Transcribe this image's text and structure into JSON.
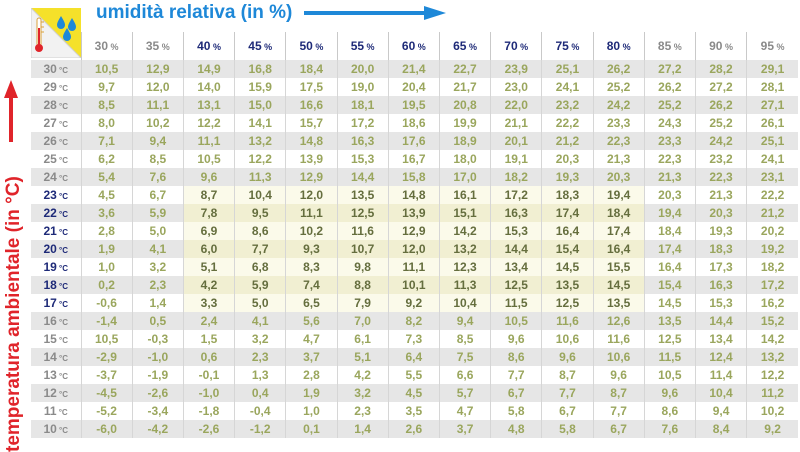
{
  "header": {
    "title": "umidità relativa (in %)"
  },
  "side": {
    "label": "temperatura ambientale (in °C)"
  },
  "icons": {
    "corner": "thermometer-water-drops-icon"
  },
  "colors": {
    "title": "#1e88d8",
    "side_label": "#e0242a",
    "dark_label": "#1e2a78",
    "value_green": "#9aa65d"
  },
  "units": {
    "humidity": "%",
    "temperature": "°C"
  },
  "humidity": [
    "30",
    "35",
    "40",
    "45",
    "50",
    "55",
    "60",
    "65",
    "70",
    "75",
    "80",
    "85",
    "90",
    "95"
  ],
  "rows": [
    {
      "t": "30",
      "v": [
        "10,5",
        "12,9",
        "14,9",
        "16,8",
        "18,4",
        "20,0",
        "21,4",
        "22,7",
        "23,9",
        "25,1",
        "26,2",
        "27,2",
        "28,2",
        "29,1"
      ]
    },
    {
      "t": "29",
      "v": [
        "9,7",
        "12,0",
        "14,0",
        "15,9",
        "17,5",
        "19,0",
        "20,4",
        "21,7",
        "23,0",
        "24,1",
        "25,2",
        "26,2",
        "27,2",
        "28,1"
      ]
    },
    {
      "t": "28",
      "v": [
        "8,5",
        "11,1",
        "13,1",
        "15,0",
        "16,6",
        "18,1",
        "19,5",
        "20,8",
        "22,0",
        "23,2",
        "24,2",
        "25,2",
        "26,2",
        "27,1"
      ]
    },
    {
      "t": "27",
      "v": [
        "8,0",
        "10,2",
        "12,2",
        "14,1",
        "15,7",
        "17,2",
        "18,6",
        "19,9",
        "21,1",
        "22,2",
        "23,3",
        "24,3",
        "25,2",
        "26,1"
      ]
    },
    {
      "t": "26",
      "v": [
        "7,1",
        "9,4",
        "11,1",
        "13,2",
        "14,8",
        "16,3",
        "17,6",
        "18,9",
        "20,1",
        "21,2",
        "22,3",
        "23,3",
        "24,2",
        "25,1"
      ]
    },
    {
      "t": "25",
      "v": [
        "6,2",
        "8,5",
        "10,5",
        "12,2",
        "13,9",
        "15,3",
        "16,7",
        "18,0",
        "19,1",
        "20,3",
        "21,3",
        "22,3",
        "23,2",
        "24,1"
      ]
    },
    {
      "t": "24",
      "v": [
        "5,4",
        "7,6",
        "9,6",
        "11,3",
        "12,9",
        "14,4",
        "15,8",
        "17,0",
        "18,2",
        "19,3",
        "20,3",
        "21,3",
        "22,3",
        "23,1"
      ]
    },
    {
      "t": "23",
      "v": [
        "4,5",
        "6,7",
        "8,7",
        "10,4",
        "12,0",
        "13,5",
        "14,8",
        "16,1",
        "17,2",
        "18,3",
        "19,4",
        "20,3",
        "21,3",
        "22,2"
      ]
    },
    {
      "t": "22",
      "v": [
        "3,6",
        "5,9",
        "7,8",
        "9,5",
        "11,1",
        "12,5",
        "13,9",
        "15,1",
        "16,3",
        "17,4",
        "18,4",
        "19,4",
        "20,3",
        "21,2"
      ]
    },
    {
      "t": "21",
      "v": [
        "2,8",
        "5,0",
        "6,9",
        "8,6",
        "10,2",
        "11,6",
        "12,9",
        "14,2",
        "15,3",
        "16,4",
        "17,4",
        "18,4",
        "19,3",
        "20,2"
      ]
    },
    {
      "t": "20",
      "v": [
        "1,9",
        "4,1",
        "6,0",
        "7,7",
        "9,3",
        "10,7",
        "12,0",
        "13,2",
        "14,4",
        "15,4",
        "16,4",
        "17,4",
        "18,3",
        "19,2"
      ]
    },
    {
      "t": "19",
      "v": [
        "1,0",
        "3,2",
        "5,1",
        "6,8",
        "8,3",
        "9,8",
        "11,1",
        "12,3",
        "13,4",
        "14,5",
        "15,5",
        "16,4",
        "17,3",
        "18,2"
      ]
    },
    {
      "t": "18",
      "v": [
        "0,2",
        "2,3",
        "4,2",
        "5,9",
        "7,4",
        "8,8",
        "10,1",
        "11,3",
        "12,5",
        "13,5",
        "14,5",
        "15,4",
        "16,3",
        "17,2"
      ]
    },
    {
      "t": "17",
      "v": [
        "-0,6",
        "1,4",
        "3,3",
        "5,0",
        "6,5",
        "7,9",
        "9,2",
        "10,4",
        "11,5",
        "12,5",
        "13,5",
        "14,5",
        "15,3",
        "16,2"
      ]
    },
    {
      "t": "16",
      "v": [
        "-1,4",
        "0,5",
        "2,4",
        "4,1",
        "5,6",
        "7,0",
        "8,2",
        "9,4",
        "10,5",
        "11,6",
        "12,6",
        "13,5",
        "14,4",
        "15,2"
      ]
    },
    {
      "t": "15",
      "v": [
        "10,5",
        "-0,3",
        "1,5",
        "3,2",
        "4,7",
        "6,1",
        "7,3",
        "8,5",
        "9,6",
        "10,6",
        "11,6",
        "12,5",
        "13,4",
        "14,2"
      ]
    },
    {
      "t": "14",
      "v": [
        "-2,9",
        "-1,0",
        "0,6",
        "2,3",
        "3,7",
        "5,1",
        "6,4",
        "7,5",
        "8,6",
        "9,6",
        "10,6",
        "11,5",
        "12,4",
        "13,2"
      ]
    },
    {
      "t": "13",
      "v": [
        "-3,7",
        "-1,9",
        "-0,1",
        "1,3",
        "2,8",
        "4,2",
        "5,5",
        "6,6",
        "7,7",
        "8,7",
        "9,6",
        "10,5",
        "11,4",
        "12,2"
      ]
    },
    {
      "t": "12",
      "v": [
        "-4,5",
        "-2,6",
        "-1,0",
        "0,4",
        "1,9",
        "3,2",
        "4,5",
        "5,7",
        "6,7",
        "7,7",
        "8,7",
        "9,6",
        "10,4",
        "11,2"
      ]
    },
    {
      "t": "11",
      "v": [
        "-5,2",
        "-3,4",
        "-1,8",
        "-0,4",
        "1,0",
        "2,3",
        "3,5",
        "4,7",
        "5,8",
        "6,7",
        "7,7",
        "8,6",
        "9,4",
        "10,2"
      ]
    },
    {
      "t": "10",
      "v": [
        "-6,0",
        "-4,2",
        "-2,6",
        "-1,2",
        "0,1",
        "1,4",
        "2,6",
        "3,7",
        "4,8",
        "5,8",
        "6,7",
        "7,6",
        "8,4",
        "9,2"
      ]
    }
  ],
  "highlight": {
    "columns": [
      "40",
      "45",
      "50",
      "55",
      "60",
      "65",
      "70",
      "75",
      "80"
    ],
    "rows": [
      "23",
      "22",
      "21",
      "20",
      "19",
      "18",
      "17"
    ]
  }
}
